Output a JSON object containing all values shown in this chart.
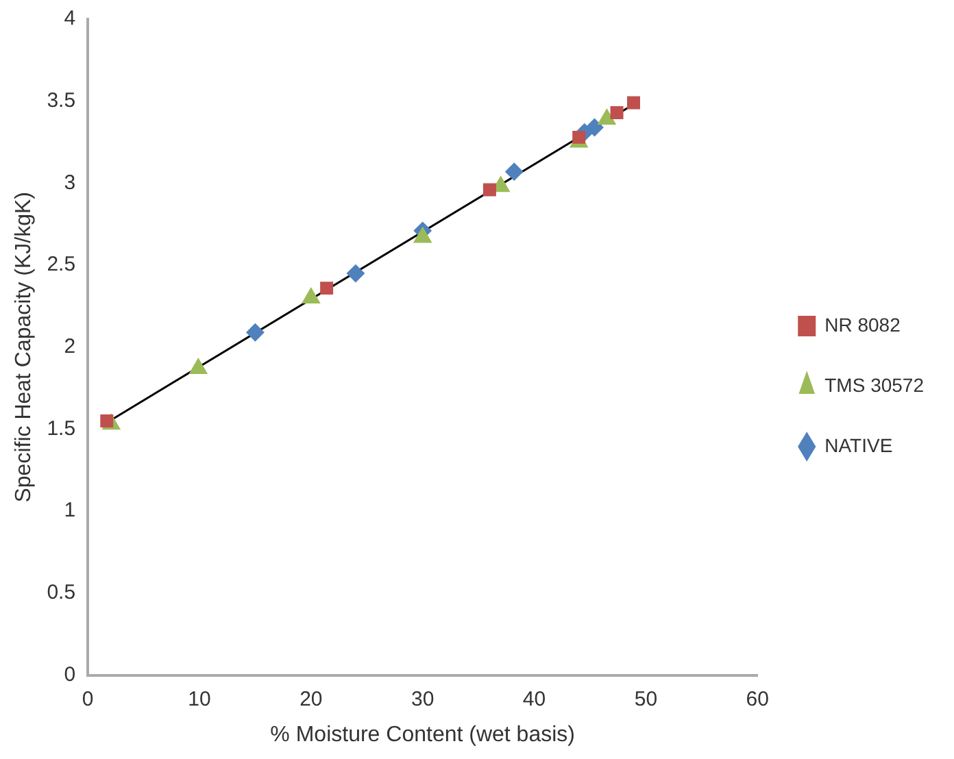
{
  "chart_data": {
    "type": "scatter",
    "xlabel": "% Moisture Content (wet basis)",
    "ylabel": "Specific Heat Capacity (KJ/kgK)",
    "xlim": [
      0,
      60
    ],
    "xticks": [
      0,
      10,
      20,
      30,
      40,
      50,
      60
    ],
    "ylim": [
      0,
      4
    ],
    "yticks": [
      0,
      0.5,
      1,
      1.5,
      2,
      2.5,
      3,
      3.5,
      4
    ],
    "grid": false,
    "legend": "right",
    "series": [
      {
        "name": "NR 8082",
        "color": "#c0504d",
        "marker": "square",
        "x": [
          1.7,
          21.4,
          36,
          44,
          47.4,
          48.9
        ],
        "values": [
          1.55,
          2.36,
          2.96,
          3.28,
          3.43,
          3.49
        ]
      },
      {
        "name": "TMS 30572",
        "color": "#9bbb59",
        "marker": "triangle",
        "x": [
          2.1,
          9.9,
          20,
          30,
          37,
          44,
          46.5
        ],
        "values": [
          1.53,
          1.87,
          2.3,
          2.67,
          2.98,
          3.25,
          3.39
        ]
      },
      {
        "name": "NATIVE",
        "color": "#4f81bd",
        "marker": "diamond",
        "x": [
          15,
          24,
          30,
          38.2,
          44.5,
          45.4
        ],
        "values": [
          2.09,
          2.45,
          2.71,
          3.07,
          3.31,
          3.34
        ]
      },
      {
        "type": "line",
        "color": "#000000",
        "marker": "none",
        "x": [
          1.7,
          48.4
        ],
        "values": [
          1.54,
          3.46
        ]
      }
    ]
  }
}
